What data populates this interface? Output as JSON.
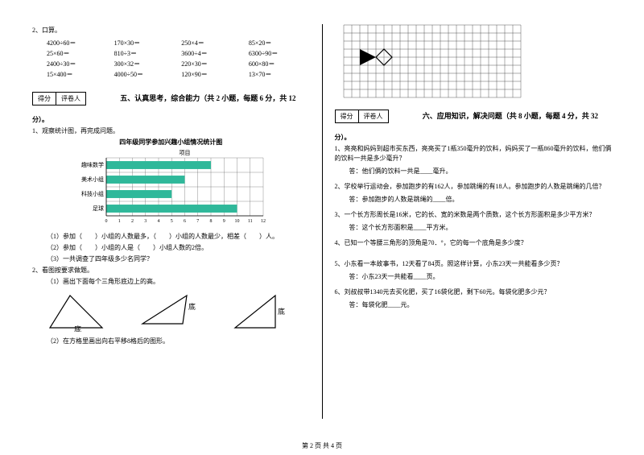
{
  "left": {
    "calc_label": "2、口算。",
    "calc": [
      "4200÷60＝",
      "170×30＝",
      "250×4＝",
      "85×20＝",
      "25×60＝",
      "810÷3＝",
      "3600÷4＝",
      "6300÷90＝",
      "2400÷30＝",
      "300×32＝",
      "220×30＝",
      "600×80＝",
      "15×400＝",
      "4000÷50＝",
      "120×90＝",
      "13×70＝"
    ],
    "score": {
      "a": "得分",
      "b": "评卷人"
    },
    "section5": "五、认真思考，综合能力（共 2 小题，每题 6 分，共 12",
    "fen": "分）。",
    "q1": "1、观察统计图，再完成问题。",
    "chart_title": "四年级同学参加兴趣小组情况统计图",
    "chart": {
      "legend": "项目",
      "ylabels": [
        "趣味数学",
        "美术小组",
        "科技小组",
        "足球"
      ],
      "values": [
        8,
        6,
        5,
        10
      ],
      "xticks": [
        "0",
        "1",
        "2",
        "3",
        "4",
        "5",
        "6",
        "7",
        "8",
        "9",
        "10",
        "11",
        "12"
      ],
      "bar_color": "#2fb89a",
      "grid_color": "#444444",
      "bg": "#ffffff"
    },
    "q1a": "（1）参加（　　）小组的人数最多，（　　）小组的人数最少，相差（　　）人。",
    "q1b": "（2）参加（　　）小组的人是（　　）小组人数的2倍。",
    "q1c": "（3）一共调查了四年级多少名同学？",
    "q2": "2、看图按要求做题。",
    "q2a": "（1）画出下面每个三角形底边上的高。",
    "tri_label": "底",
    "q2b": "（2）在方格里画出向右平移8格后的图形。"
  },
  "right": {
    "grid": {
      "cols": 22,
      "rows": 9,
      "cell": 10,
      "stroke": "#333333",
      "shape_stroke": "#000000"
    },
    "score": {
      "a": "得分",
      "b": "评卷人"
    },
    "section6": "六、应用知识，解决问题（共 8 小题，每题 4 分，共 32",
    "fen": "分）。",
    "q1": "1、亮亮和妈妈到超市买东西，亮亮买了1瓶350毫升的饮料，妈妈买了一瓶860毫升的饮料，他们俩的饮料一共是多少毫升？",
    "a1": "答：他们俩的饮料一共是____毫升。",
    "q2": "2、学校举行运动会，参加跑步的有162人，参加跳绳的有18人。参加跑步的人数是跳绳的几倍？",
    "a2": "答：参加跑步的人数是跳绳的____倍。",
    "q3": "3、一个长方形周长是16米，它的长、宽的米数是两个质数，这个长方形面积是多少平方米？",
    "a3": "答：这个长方形面积是____平方米。",
    "q4": "4、已知一个等腰三角形的顶角是70．°，它的每一个底角是多少度？",
    "q5": "5、小东看一本故事书，12天看了84页。照这样计算，小东23天一共能看多少页？",
    "a5": "答：小东23天一共能看____页。",
    "q6": "6、刘叔叔带1340元去买化肥，买了16袋化肥，剩下60元。每袋化肥多少元？",
    "a6": "答：每袋化肥____元。"
  },
  "footer": "第 2 页  共 4 页"
}
